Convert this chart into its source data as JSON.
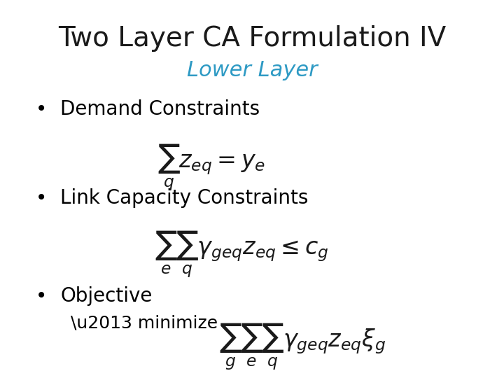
{
  "title": "Two Layer CA Formulation IV",
  "subtitle": "Lower Layer",
  "subtitle_color": "#2E9AC4",
  "title_fontsize": 28,
  "subtitle_fontsize": 22,
  "background_color": "#ffffff",
  "bullet_color": "#000000",
  "bullet1_text": "Demand Constraints",
  "bullet1_formula": "\\sum_{q} z_{eq} = y_e",
  "bullet2_text": "Link Capacity Constraints",
  "bullet2_formula": "\\sum_{e} \\sum_{q} \\gamma_{geq} z_{eq} \\leq c_g",
  "bullet3_text": "Objective",
  "bullet3_sub": "\\u2013 minimize",
  "bullet3_formula": "\\sum_{g} \\sum_{e} \\sum_{q} \\gamma_{geq} z_{eq} \\xi_g",
  "formula_fontsize": 20,
  "bullet_fontsize": 20,
  "sub_fontsize": 18
}
